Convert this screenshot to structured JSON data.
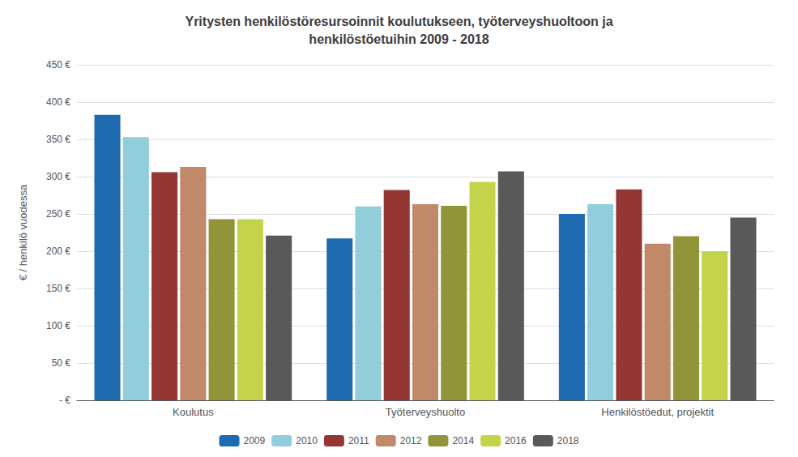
{
  "chart_data": {
    "type": "bar",
    "title": "Yritysten henkilöstöresursoinnit koulutukseen, työterveyshuoltoon ja\nhenkilöstöetuihin 2009 - 2018",
    "ylabel": "€ / henkilö vuodessa",
    "categories": [
      "Koulutus",
      "Työterveyshuolto",
      "Henkilöstöedut, projektit"
    ],
    "series": [
      {
        "name": "2009",
        "color": "#1F6BB0",
        "values": [
          383,
          217,
          250
        ]
      },
      {
        "name": "2010",
        "color": "#92CDDC",
        "values": [
          353,
          260,
          263
        ]
      },
      {
        "name": "2011",
        "color": "#943634",
        "values": [
          306,
          282,
          283
        ]
      },
      {
        "name": "2012",
        "color": "#C0896A",
        "values": [
          313,
          263,
          210
        ]
      },
      {
        "name": "2014",
        "color": "#92943A",
        "values": [
          243,
          261,
          220
        ]
      },
      {
        "name": "2016",
        "color": "#C4D44A",
        "values": [
          243,
          293,
          200
        ]
      },
      {
        "name": "2018",
        "color": "#595959",
        "values": [
          221,
          307,
          245
        ]
      }
    ],
    "ylim": [
      0,
      450
    ],
    "yticks": [
      {
        "value": 0,
        "label": "- €"
      },
      {
        "value": 50,
        "label": "50 €"
      },
      {
        "value": 100,
        "label": "100 €"
      },
      {
        "value": 150,
        "label": "150 €"
      },
      {
        "value": 200,
        "label": "200 €"
      },
      {
        "value": 250,
        "label": "250 €"
      },
      {
        "value": 300,
        "label": "300 €"
      },
      {
        "value": 350,
        "label": "350 €"
      },
      {
        "value": 400,
        "label": "400 €"
      },
      {
        "value": 450,
        "label": "450 €"
      }
    ],
    "grid": true,
    "legend": "bottom"
  }
}
